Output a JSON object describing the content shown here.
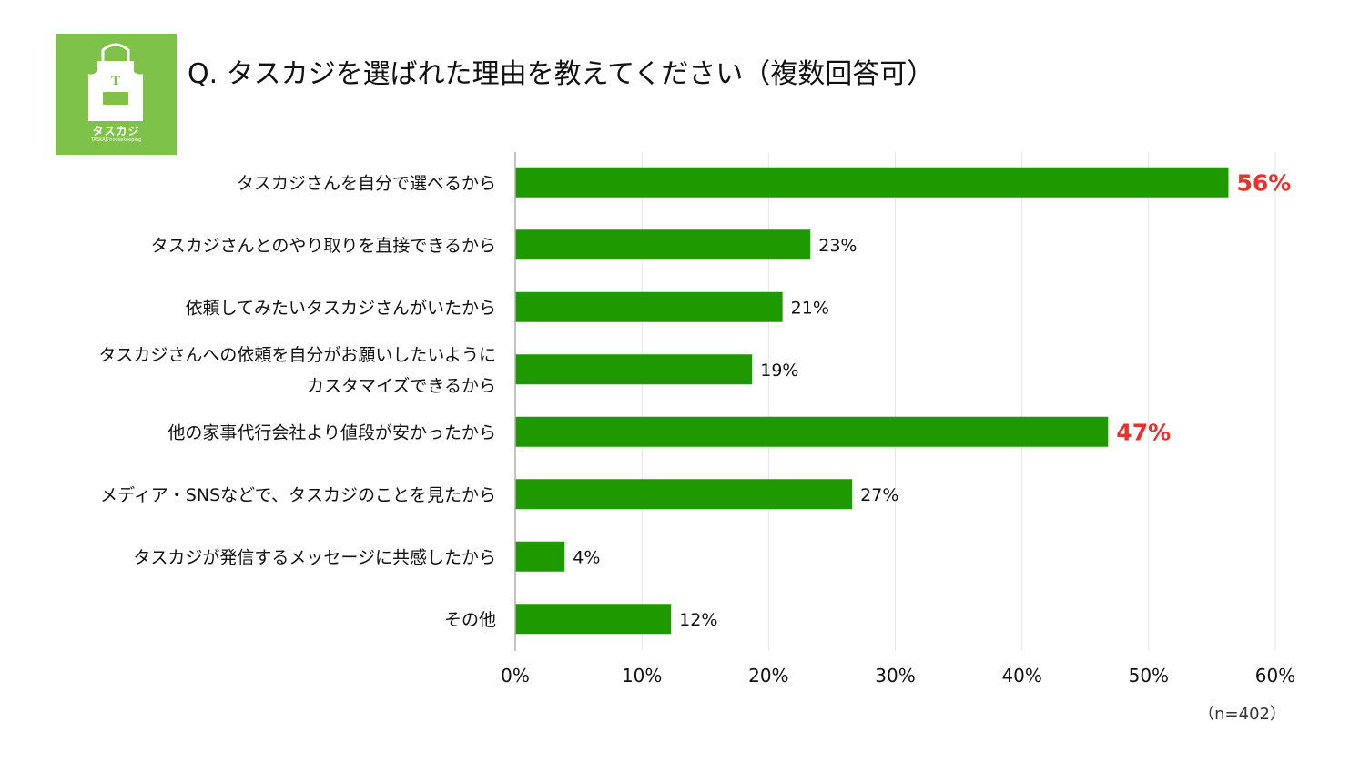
{
  "logo": {
    "name": "タスカジ",
    "sub": "TASKAJI housekeeping",
    "mark": "T"
  },
  "title": "Q. タスカジを選ばれた理由を教えてください（複数回答可）",
  "note": "（n=402）",
  "colors": {
    "bar": "#1e9a00",
    "highlight": "#e8322b",
    "grid": "#e6e6e6",
    "axis": "#b0b0b0",
    "logo_bg": "#7ec24a"
  },
  "chart_data": {
    "type": "bar",
    "orientation": "horizontal",
    "categories": [
      [
        "タスカジさんを自分で選べるから"
      ],
      [
        "タスカジさんとのやり取りを直接できるから"
      ],
      [
        "依頼してみたいタスカジさんがいたから"
      ],
      [
        "タスカジさんへの依頼を自分がお願いしたいように",
        "カスタマイズできるから"
      ],
      [
        "他の家事代行会社より値段が安かったから"
      ],
      [
        "メディア・SNSなどで、タスカジのことを見たから"
      ],
      [
        "タスカジが発信するメッセージに共感したから"
      ],
      [
        "その他"
      ]
    ],
    "values": [
      56.3,
      23.3,
      21.1,
      18.7,
      46.8,
      26.6,
      3.9,
      12.3
    ],
    "value_labels": [
      "56%",
      "23%",
      "21%",
      "19%",
      "47%",
      "27%",
      "4%",
      "12%"
    ],
    "highlight": [
      true,
      false,
      false,
      false,
      true,
      false,
      false,
      false
    ],
    "xlim": [
      0,
      60
    ],
    "x_ticks": [
      0,
      10,
      20,
      30,
      40,
      50,
      60
    ],
    "x_tick_labels": [
      "0%",
      "10%",
      "20%",
      "30%",
      "40%",
      "50%",
      "60%"
    ],
    "grid": true,
    "legend": "none"
  }
}
